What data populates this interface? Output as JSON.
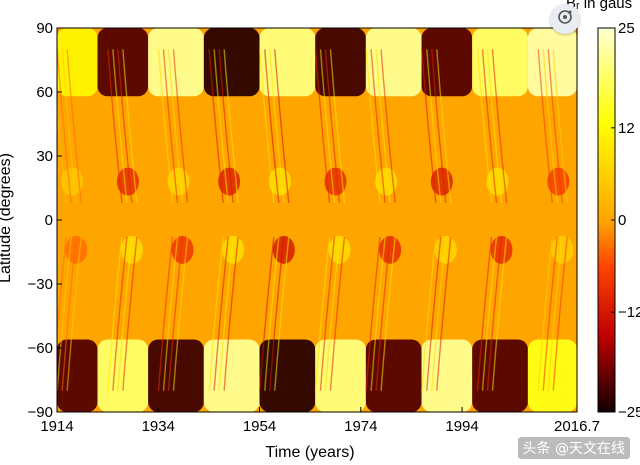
{
  "chart_data": {
    "type": "heatmap",
    "title": "",
    "xlabel": "Time (years)",
    "ylabel": "Latitude (degrees)",
    "xlim": [
      1914,
      2016.7
    ],
    "ylim": [
      -90,
      90
    ],
    "x_ticks": [
      "1914",
      "1934",
      "1954",
      "1974",
      "1994",
      "2016.7"
    ],
    "y_ticks": [
      "90",
      "60",
      "30",
      "0",
      "−30",
      "−60",
      "−90"
    ],
    "colorbar": {
      "label": "Bᵣ in gaus",
      "range": [
        -25,
        25
      ],
      "ticks": [
        "25",
        "12",
        "0",
        "−12",
        "−25"
      ],
      "colors": [
        "#120000",
        "#c00000",
        "#ff4500",
        "#ffa500",
        "#ffff00",
        "#ffffd0"
      ]
    },
    "polar_field_phases": [
      {
        "start": 1914,
        "end": 1922,
        "north": 0.45,
        "south": -0.85
      },
      {
        "start": 1922,
        "end": 1932,
        "north": -0.85,
        "south": 0.75
      },
      {
        "start": 1932,
        "end": 1943,
        "north": 0.85,
        "south": -0.9
      },
      {
        "start": 1943,
        "end": 1954,
        "north": -0.95,
        "south": 0.85
      },
      {
        "start": 1954,
        "end": 1965,
        "north": 0.8,
        "south": -0.95
      },
      {
        "start": 1965,
        "end": 1975,
        "north": -0.9,
        "south": 0.8
      },
      {
        "start": 1975,
        "end": 1986,
        "north": 0.85,
        "south": -0.85
      },
      {
        "start": 1986,
        "end": 1996,
        "north": -0.85,
        "south": 0.85
      },
      {
        "start": 1996,
        "end": 2007,
        "north": 0.75,
        "south": -0.85
      },
      {
        "start": 2007,
        "end": 2016.7,
        "north": 0.9,
        "south": 0.55
      }
    ],
    "active_region_bands": [
      {
        "year": 1917,
        "north": 0.2,
        "south": -0.15
      },
      {
        "year": 1928,
        "north": -0.4,
        "south": 0.35
      },
      {
        "year": 1938,
        "north": 0.3,
        "south": -0.35
      },
      {
        "year": 1948,
        "north": -0.45,
        "south": 0.35
      },
      {
        "year": 1958,
        "north": 0.35,
        "south": -0.5
      },
      {
        "year": 1969,
        "north": -0.4,
        "south": 0.35
      },
      {
        "year": 1979,
        "north": 0.35,
        "south": -0.4
      },
      {
        "year": 1990,
        "north": -0.45,
        "south": 0.3
      },
      {
        "year": 2001,
        "north": 0.35,
        "south": -0.4
      },
      {
        "year": 2013,
        "north": -0.3,
        "south": 0.25
      }
    ]
  },
  "watermark": "头条 @天文在线",
  "toolbar": {
    "lens_icon": "lens-icon"
  }
}
